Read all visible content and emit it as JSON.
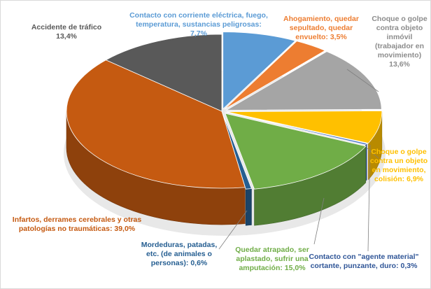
{
  "chart_data": {
    "type": "pie",
    "variant": "3d-exploded",
    "start_angle_deg": -90,
    "direction": "clockwise",
    "slices": [
      {
        "label": "Contacto con corriente eléctrica, fuego, temperatura, sustancias peligrosas: 7,7%",
        "value": 7.7,
        "color": "#5b9bd5",
        "label_color": "#5b9bd5"
      },
      {
        "label": "Ahogamiento, quedar sepultado, quedar envuelto: 3,5%",
        "value": 3.5,
        "color": "#ed7d31",
        "label_color": "#ed7d31"
      },
      {
        "label": "Choque o golpe contra objeto inmóvil (trabajador en movimiento) 13,6%",
        "value": 13.6,
        "color": "#a5a5a5",
        "label_color": "#8c8c8c"
      },
      {
        "label": "Choque o golpe contra un objeto en movimiento, colisión: 6,9%",
        "value": 6.9,
        "color": "#ffc000",
        "label_color": "#ffc000"
      },
      {
        "label": "Contacto con \"agente material\" cortante, punzante, duro: 0,3%",
        "value": 0.3,
        "color": "#4472c4",
        "label_color": "#2f5597"
      },
      {
        "label": "Quedar atrapado, ser aplastado, sufrir una amputación: 15,0%",
        "value": 15.0,
        "color": "#70ad47",
        "label_color": "#70ad47"
      },
      {
        "label": "Mordeduras, patadas, etc. (de animales o personas): 0,6%",
        "value": 0.6,
        "color": "#255e91",
        "label_color": "#255e91"
      },
      {
        "label": "Infartos, derrames cerebrales y otras patologías no traumáticas: 39,0%",
        "value": 39.0,
        "color": "#c55a11",
        "label_color": "#c55a11"
      },
      {
        "label": "Accidente de tráfico 13,4%",
        "value": 13.4,
        "color": "#595959",
        "label_color": "#595959"
      }
    ]
  }
}
